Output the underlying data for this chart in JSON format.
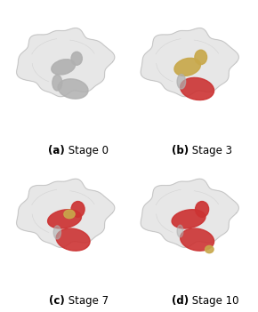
{
  "background_color": "#ffffff",
  "label_bold_parts": [
    "(a)",
    "(b)",
    "(c)",
    "(d)"
  ],
  "label_regular_parts": [
    " Stage 0",
    " Stage 3",
    " Stage 7",
    " Stage 10"
  ],
  "fig_width": 2.9,
  "fig_height": 3.51,
  "dpi": 100,
  "brain_color": "#d5d5d5",
  "subcortical_gray": "#b0b0b0",
  "subcortical_gold": "#c8a84b",
  "subcortical_red": "#cc3333",
  "label_fontsize": 8.5
}
